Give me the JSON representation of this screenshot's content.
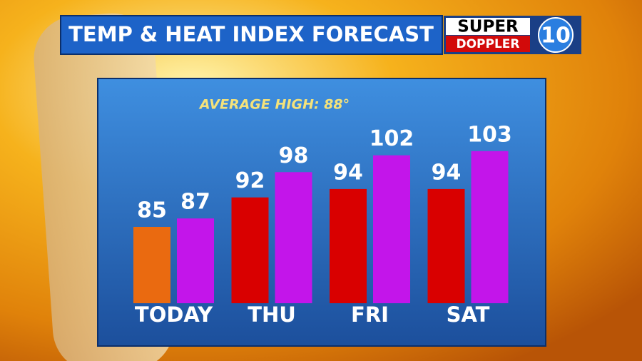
{
  "chart_data": {
    "type": "bar",
    "title": "TEMP & HEAT INDEX FORECAST",
    "annotation": "AVERAGE HIGH: 88°",
    "categories": [
      "TODAY",
      "THU",
      "FRI",
      "SAT"
    ],
    "series": [
      {
        "colors": [
          "#ea6a10",
          "#d90000",
          "#d90000",
          "#d90000"
        ],
        "values": [
          85,
          92,
          94,
          94
        ]
      },
      {
        "color": "#c315ea",
        "values": [
          87,
          98,
          102,
          103
        ]
      }
    ]
  },
  "branding": {
    "line1": "SUPER",
    "line2": "DOPPLER",
    "number": "10"
  }
}
